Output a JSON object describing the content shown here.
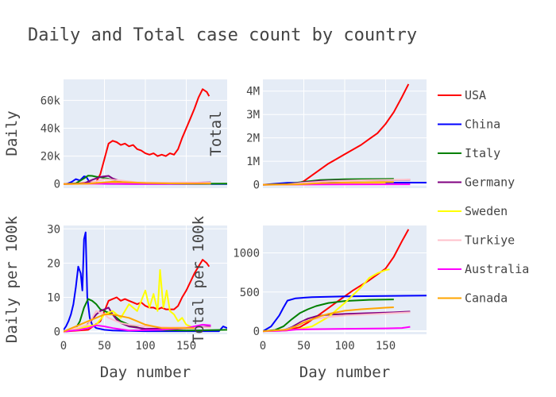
{
  "title": "Daily and Total case count by country",
  "legend": [
    {
      "name": "USA",
      "color": "#ff0000"
    },
    {
      "name": "China",
      "color": "#0000ff"
    },
    {
      "name": "Italy",
      "color": "#008000"
    },
    {
      "name": "Germany",
      "color": "#800080"
    },
    {
      "name": "Sweden",
      "color": "#ffff00"
    },
    {
      "name": "Turkiye",
      "color": "#ffc0cb"
    },
    {
      "name": "Australia",
      "color": "#ff00ff"
    },
    {
      "name": "Canada",
      "color": "#ffa500"
    }
  ],
  "chart_data": [
    {
      "type": "line",
      "panel": "top-left",
      "ylabel": "Daily",
      "xlabel": "",
      "xlim": [
        0,
        200
      ],
      "ylim": [
        -3000,
        75000
      ],
      "yticks": [
        0,
        20000,
        40000,
        60000
      ],
      "ytick_labels": [
        "0",
        "20k",
        "40k",
        "60k"
      ],
      "xticks": [],
      "xtick_labels": [],
      "series": [
        {
          "name": "USA",
          "x": [
            0,
            20,
            40,
            45,
            50,
            55,
            60,
            65,
            70,
            75,
            80,
            85,
            90,
            95,
            100,
            105,
            110,
            115,
            120,
            125,
            130,
            135,
            140,
            145,
            150,
            155,
            160,
            165,
            170,
            175,
            178
          ],
          "y": [
            0,
            500,
            1500,
            7000,
            18000,
            29000,
            31000,
            30000,
            28000,
            29000,
            27000,
            28000,
            25000,
            24000,
            22000,
            21000,
            22000,
            20000,
            21000,
            20000,
            22000,
            21000,
            25000,
            33000,
            40000,
            47000,
            54000,
            62000,
            68000,
            66000,
            63000
          ]
        },
        {
          "name": "China",
          "x": [
            0,
            5,
            10,
            15,
            20,
            25,
            28,
            32,
            40,
            60,
            100,
            150,
            200
          ],
          "y": [
            0,
            300,
            1500,
            3500,
            2500,
            5500,
            5000,
            1000,
            200,
            50,
            20,
            20,
            20
          ]
        },
        {
          "name": "Italy",
          "x": [
            0,
            15,
            25,
            30,
            35,
            40,
            45,
            50,
            55,
            60,
            65,
            70,
            80,
            100,
            150,
            200
          ],
          "y": [
            0,
            500,
            4000,
            6000,
            5800,
            5200,
            4800,
            4300,
            3700,
            3000,
            2500,
            1700,
            1000,
            300,
            200,
            300
          ]
        },
        {
          "name": "Germany",
          "x": [
            0,
            25,
            35,
            40,
            45,
            50,
            55,
            60,
            65,
            70,
            80,
            100,
            150,
            180
          ],
          "y": [
            0,
            500,
            3000,
            4000,
            5000,
            5500,
            5800,
            4000,
            3000,
            2000,
            1200,
            700,
            800,
            1200
          ]
        },
        {
          "name": "Sweden",
          "x": [
            0,
            40,
            60,
            80,
            100,
            120,
            150,
            180
          ],
          "y": [
            0,
            200,
            500,
            800,
            900,
            1000,
            500,
            300
          ]
        },
        {
          "name": "Turkiye",
          "x": [
            0,
            30,
            50,
            70,
            90,
            120,
            150,
            180
          ],
          "y": [
            0,
            300,
            3500,
            2500,
            1200,
            1000,
            1100,
            1000
          ]
        },
        {
          "name": "Australia",
          "x": [
            0,
            20,
            35,
            50,
            80,
            120,
            150,
            170,
            180
          ],
          "y": [
            0,
            150,
            300,
            200,
            50,
            100,
            300,
            500,
            400
          ]
        },
        {
          "name": "Canada",
          "x": [
            0,
            30,
            50,
            60,
            80,
            100,
            130,
            160,
            180
          ],
          "y": [
            0,
            300,
            1200,
            1600,
            1200,
            700,
            400,
            300,
            400
          ]
        }
      ]
    },
    {
      "type": "line",
      "panel": "top-right",
      "ylabel": "Total",
      "xlabel": "",
      "xlim": [
        0,
        200
      ],
      "ylim": [
        -150000,
        4500000
      ],
      "yticks": [
        0,
        1000000,
        2000000,
        3000000,
        4000000
      ],
      "ytick_labels": [
        "0",
        "1M",
        "2M",
        "3M",
        "4M"
      ],
      "xticks": [],
      "xtick_labels": [],
      "series": [
        {
          "name": "USA",
          "x": [
            0,
            40,
            50,
            60,
            70,
            80,
            90,
            100,
            110,
            120,
            130,
            140,
            150,
            160,
            170,
            178
          ],
          "y": [
            0,
            20000,
            150000,
            400000,
            650000,
            900000,
            1100000,
            1300000,
            1500000,
            1700000,
            1950000,
            2200000,
            2600000,
            3100000,
            3750000,
            4300000
          ]
        },
        {
          "name": "China",
          "x": [
            0,
            30,
            60,
            100,
            150,
            200
          ],
          "y": [
            0,
            80000,
            83000,
            84000,
            85000,
            86000
          ]
        },
        {
          "name": "Italy",
          "x": [
            0,
            30,
            50,
            70,
            100,
            150,
            160
          ],
          "y": [
            0,
            30000,
            120000,
            200000,
            230000,
            245000,
            248000
          ]
        },
        {
          "name": "Germany",
          "x": [
            0,
            30,
            50,
            70,
            100,
            150,
            180
          ],
          "y": [
            0,
            20000,
            100000,
            160000,
            180000,
            200000,
            210000
          ]
        },
        {
          "name": "Sweden",
          "x": [
            0,
            50,
            100,
            150
          ],
          "y": [
            0,
            10000,
            40000,
            80000
          ]
        },
        {
          "name": "Turkiye",
          "x": [
            0,
            30,
            50,
            80,
            120,
            180
          ],
          "y": [
            0,
            5000,
            80000,
            150000,
            190000,
            220000
          ]
        },
        {
          "name": "Australia",
          "x": [
            0,
            50,
            100,
            180
          ],
          "y": [
            0,
            6000,
            8000,
            15000
          ]
        },
        {
          "name": "Canada",
          "x": [
            0,
            40,
            70,
            100,
            150,
            160
          ],
          "y": [
            0,
            10000,
            60000,
            90000,
            110000,
            115000
          ]
        }
      ]
    },
    {
      "type": "line",
      "panel": "bottom-left",
      "ylabel": "Daily per 100k",
      "xlabel": "Day number",
      "xlim": [
        0,
        200
      ],
      "ylim": [
        -0.8,
        31
      ],
      "yticks": [
        0,
        10,
        20,
        30
      ],
      "ytick_labels": [
        "0",
        "10",
        "20",
        "30"
      ],
      "xticks": [
        0,
        50,
        100,
        150
      ],
      "xtick_labels": [
        "0",
        "50",
        "100",
        "150"
      ],
      "series": [
        {
          "name": "USA",
          "x": [
            0,
            30,
            45,
            50,
            55,
            60,
            65,
            70,
            75,
            80,
            85,
            90,
            95,
            100,
            105,
            110,
            115,
            120,
            125,
            130,
            135,
            140,
            145,
            150,
            155,
            160,
            165,
            170,
            175,
            178
          ],
          "y": [
            0,
            0.5,
            3,
            6,
            9,
            9.5,
            10,
            9,
            9.5,
            9,
            8.5,
            8,
            8.5,
            7.5,
            7,
            7,
            6.5,
            7,
            6.5,
            6.5,
            6.5,
            7.5,
            10,
            12,
            14.5,
            17,
            19,
            21,
            20,
            19
          ]
        },
        {
          "name": "China",
          "x": [
            0,
            3,
            6,
            9,
            12,
            15,
            18,
            21,
            23,
            25,
            27,
            29,
            32,
            35,
            40,
            50,
            60,
            80,
            100,
            150,
            190,
            195,
            200
          ],
          "y": [
            0.5,
            1.5,
            3,
            5,
            8,
            13,
            19,
            17,
            12,
            27,
            29,
            10,
            4,
            2,
            1,
            0.5,
            0.3,
            0.2,
            0.1,
            0.1,
            0.1,
            1.5,
            1
          ]
        },
        {
          "name": "Italy",
          "x": [
            0,
            15,
            20,
            25,
            30,
            35,
            40,
            45,
            50,
            55,
            60,
            65,
            70,
            80,
            100,
            150,
            200
          ],
          "y": [
            0,
            1,
            3,
            7,
            9.5,
            9,
            8,
            6.5,
            6,
            5.5,
            5,
            4,
            3,
            2,
            0.5,
            0.3,
            0.5
          ]
        },
        {
          "name": "Germany",
          "x": [
            0,
            25,
            35,
            40,
            45,
            50,
            55,
            60,
            65,
            70,
            80,
            100,
            150,
            180
          ],
          "y": [
            0,
            1,
            3.5,
            5,
            6,
            6.5,
            7,
            5,
            3.5,
            2.5,
            1.5,
            0.8,
            1,
            1.5
          ]
        },
        {
          "name": "Sweden",
          "x": [
            0,
            40,
            50,
            60,
            70,
            80,
            90,
            100,
            105,
            110,
            115,
            118,
            122,
            126,
            130,
            135,
            140,
            145,
            150,
            155,
            160
          ],
          "y": [
            0,
            2,
            5,
            6,
            4,
            8,
            6,
            12,
            7,
            11,
            6,
            18,
            7,
            12,
            6,
            5,
            3,
            4,
            2,
            1.5,
            1
          ]
        },
        {
          "name": "Turkiye",
          "x": [
            0,
            30,
            40,
            50,
            55,
            60,
            70,
            80,
            100,
            130,
            160,
            180
          ],
          "y": [
            0,
            2,
            6,
            5,
            4,
            3.5,
            2.5,
            2,
            1.5,
            1.2,
            1.3,
            1.2
          ]
        },
        {
          "name": "Australia",
          "x": [
            0,
            20,
            30,
            40,
            50,
            60,
            80,
            120,
            150,
            170,
            180
          ],
          "y": [
            0,
            0.5,
            1,
            1.8,
            1.5,
            1,
            0.3,
            0.5,
            1,
            2,
            1.8
          ]
        },
        {
          "name": "Canada",
          "x": [
            0,
            30,
            40,
            50,
            60,
            70,
            80,
            90,
            100,
            120,
            150,
            160
          ],
          "y": [
            0,
            3,
            4,
            5,
            5,
            4.5,
            4,
            3,
            2,
            1,
            1,
            1
          ]
        }
      ]
    },
    {
      "type": "line",
      "panel": "bottom-right",
      "ylabel": "Total per 100k",
      "xlabel": "Day number",
      "xlim": [
        0,
        200
      ],
      "ylim": [
        -40,
        1350
      ],
      "yticks": [
        0,
        500,
        1000
      ],
      "ytick_labels": [
        "0",
        "500",
        "1000"
      ],
      "xticks": [
        0,
        50,
        100,
        150
      ],
      "xtick_labels": [
        "0",
        "50",
        "100",
        "150"
      ],
      "series": [
        {
          "name": "USA",
          "x": [
            0,
            30,
            45,
            55,
            70,
            90,
            110,
            130,
            150,
            160,
            170,
            178
          ],
          "y": [
            0,
            10,
            50,
            110,
            220,
            370,
            520,
            650,
            800,
            950,
            1150,
            1300
          ]
        },
        {
          "name": "China",
          "x": [
            0,
            10,
            20,
            25,
            30,
            40,
            60,
            100,
            150,
            200
          ],
          "y": [
            0,
            60,
            200,
            300,
            390,
            420,
            435,
            445,
            450,
            455
          ]
        },
        {
          "name": "Italy",
          "x": [
            0,
            15,
            25,
            35,
            45,
            55,
            65,
            80,
            100,
            130,
            160
          ],
          "y": [
            0,
            15,
            60,
            150,
            230,
            280,
            320,
            360,
            385,
            400,
            405
          ]
        },
        {
          "name": "Germany",
          "x": [
            0,
            25,
            35,
            45,
            55,
            65,
            80,
            100,
            130,
            160,
            180
          ],
          "y": [
            0,
            10,
            50,
            110,
            160,
            190,
            210,
            220,
            230,
            240,
            250
          ]
        },
        {
          "name": "Sweden",
          "x": [
            0,
            40,
            60,
            80,
            100,
            120,
            130,
            140,
            150,
            155
          ],
          "y": [
            0,
            20,
            60,
            180,
            360,
            560,
            680,
            740,
            780,
            790
          ]
        },
        {
          "name": "Turkiye",
          "x": [
            0,
            25,
            40,
            50,
            60,
            80,
            100,
            130,
            160,
            180
          ],
          "y": [
            0,
            10,
            60,
            120,
            150,
            180,
            200,
            215,
            230,
            240
          ]
        },
        {
          "name": "Australia",
          "x": [
            0,
            20,
            30,
            40,
            60,
            100,
            150,
            170,
            180
          ],
          "y": [
            0,
            3,
            10,
            20,
            25,
            30,
            35,
            40,
            55
          ]
        },
        {
          "name": "Canada",
          "x": [
            0,
            30,
            40,
            50,
            60,
            70,
            80,
            100,
            120,
            150,
            160
          ],
          "y": [
            0,
            20,
            60,
            110,
            150,
            190,
            220,
            260,
            280,
            300,
            305
          ]
        }
      ]
    }
  ]
}
